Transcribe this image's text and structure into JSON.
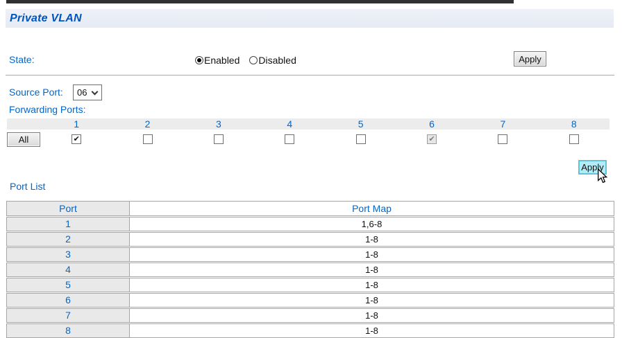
{
  "page": {
    "title": "Private VLAN"
  },
  "colors": {
    "link_blue": "#0066cc",
    "apply_highlight": "#b5ebf7",
    "header_strip": "#ececec"
  },
  "state_section": {
    "label": "State:",
    "options": [
      {
        "label": "Enabled",
        "selected": true
      },
      {
        "label": "Disabled",
        "selected": false
      }
    ],
    "apply_label": "Apply"
  },
  "source_port": {
    "label": "Source Port:",
    "value": "06"
  },
  "forwarding": {
    "label": "Forwarding Ports:",
    "all_label": "All",
    "ports": [
      {
        "n": "1",
        "checked": true,
        "disabled": false
      },
      {
        "n": "2",
        "checked": false,
        "disabled": false
      },
      {
        "n": "3",
        "checked": false,
        "disabled": false
      },
      {
        "n": "4",
        "checked": false,
        "disabled": false
      },
      {
        "n": "5",
        "checked": false,
        "disabled": false
      },
      {
        "n": "6",
        "checked": true,
        "disabled": true
      },
      {
        "n": "7",
        "checked": false,
        "disabled": false
      },
      {
        "n": "8",
        "checked": false,
        "disabled": false
      }
    ],
    "apply_label": "Apply",
    "check_glyph": "✔"
  },
  "port_list": {
    "title": "Port List",
    "columns": [
      "Port",
      "Port Map"
    ],
    "rows": [
      [
        "1",
        "1,6-8"
      ],
      [
        "2",
        "1-8"
      ],
      [
        "3",
        "1-8"
      ],
      [
        "4",
        "1-8"
      ],
      [
        "5",
        "1-8"
      ],
      [
        "6",
        "1-8"
      ],
      [
        "7",
        "1-8"
      ],
      [
        "8",
        "1-8"
      ]
    ]
  }
}
